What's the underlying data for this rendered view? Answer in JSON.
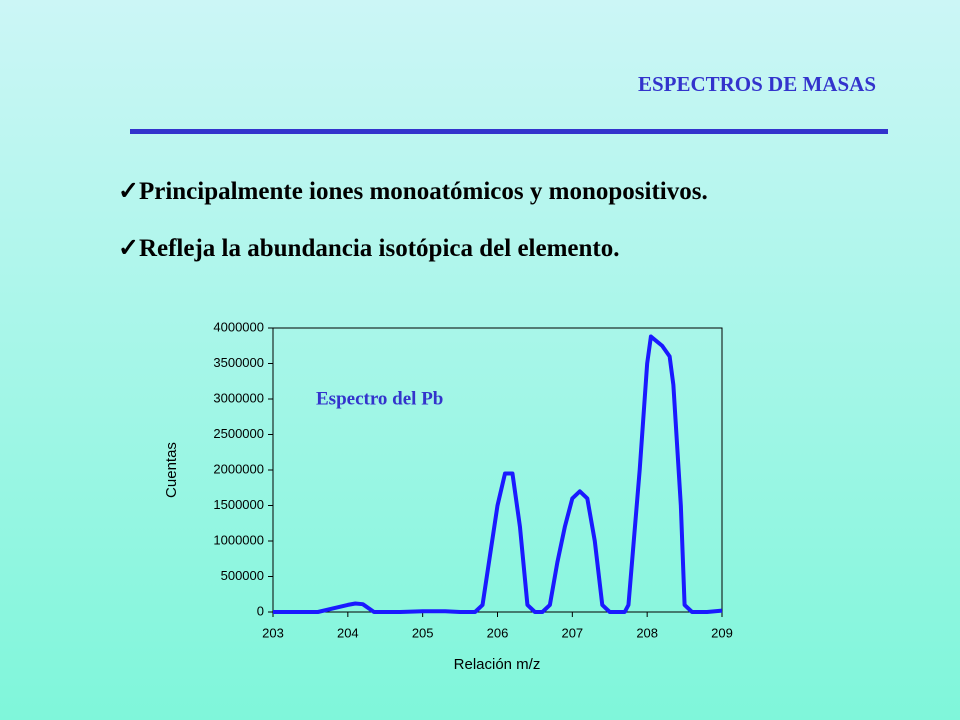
{
  "header": {
    "title": "ESPECTROS DE MASAS"
  },
  "bullets": [
    "Principalmente iones monoatómicos y monopositivos.",
    "Refleja la abundancia isotópica del elemento."
  ],
  "chart_data": {
    "type": "line",
    "annotation": "Espectro del Pb",
    "xlabel": "Relación m/z",
    "ylabel": "Cuentas",
    "x": [
      203,
      203.3,
      203.6,
      203.8,
      204,
      204.1,
      204.2,
      204.35,
      204.7,
      205,
      205.3,
      205.5,
      205.7,
      205.8,
      205.9,
      206,
      206.1,
      206.2,
      206.3,
      206.4,
      206.5,
      206.6,
      206.7,
      206.8,
      206.9,
      207,
      207.1,
      207.2,
      207.3,
      207.4,
      207.5,
      207.7,
      207.75,
      207.9,
      208,
      208.05,
      208.2,
      208.3,
      208.35,
      208.45,
      208.5,
      208.6,
      208.8,
      209
    ],
    "series": [
      {
        "name": "Pb",
        "color": "#1a1aff",
        "values": [
          0,
          0,
          0,
          50000,
          100000,
          120000,
          110000,
          0,
          0,
          10000,
          10000,
          0,
          0,
          100000,
          800000,
          1500000,
          1950000,
          1950000,
          1200000,
          100000,
          0,
          0,
          100000,
          700000,
          1200000,
          1600000,
          1700000,
          1600000,
          1000000,
          100000,
          0,
          0,
          100000,
          2000000,
          3500000,
          3880000,
          3750000,
          3600000,
          3200000,
          1500000,
          100000,
          0,
          0,
          20000
        ]
      }
    ],
    "xlim": [
      203,
      209
    ],
    "xticks": [
      203,
      204,
      205,
      206,
      207,
      208,
      209
    ],
    "ylim": [
      0,
      4000000
    ],
    "yticks": [
      0,
      500000,
      1000000,
      1500000,
      2000000,
      2500000,
      3000000,
      3500000,
      4000000
    ]
  }
}
